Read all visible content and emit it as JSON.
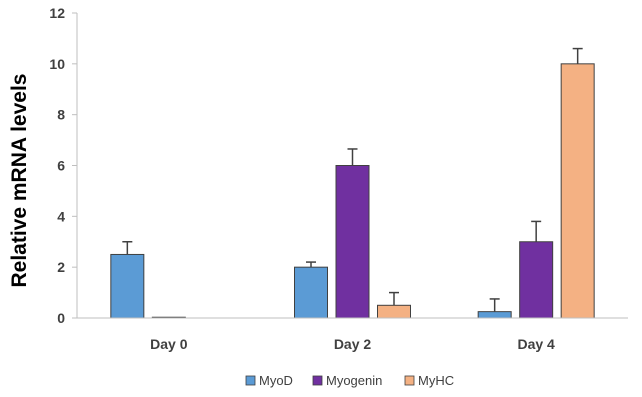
{
  "chart_data": {
    "type": "bar",
    "title": "",
    "xlabel": "",
    "ylabel": "Relative mRNA levels",
    "ylim": [
      0,
      12
    ],
    "yticks": [
      0,
      2,
      4,
      6,
      8,
      10,
      12
    ],
    "categories": [
      "Day 0",
      "Day 2",
      "Day 4"
    ],
    "series": [
      {
        "name": "MyoD",
        "values": [
          2.5,
          2.0,
          0.25
        ],
        "errors": [
          0.5,
          0.2,
          0.5
        ],
        "color": "#5B9BD5"
      },
      {
        "name": "Myogenin",
        "values": [
          0.03,
          6.0,
          3.0
        ],
        "errors": [
          0.0,
          0.65,
          0.8
        ],
        "color": "#7030A0"
      },
      {
        "name": "MyHC",
        "values": [
          0.0,
          0.5,
          10.0
        ],
        "errors": [
          0.0,
          0.5,
          0.6
        ],
        "color": "#F4B183"
      }
    ],
    "legend_position": "bottom",
    "grid": false
  }
}
